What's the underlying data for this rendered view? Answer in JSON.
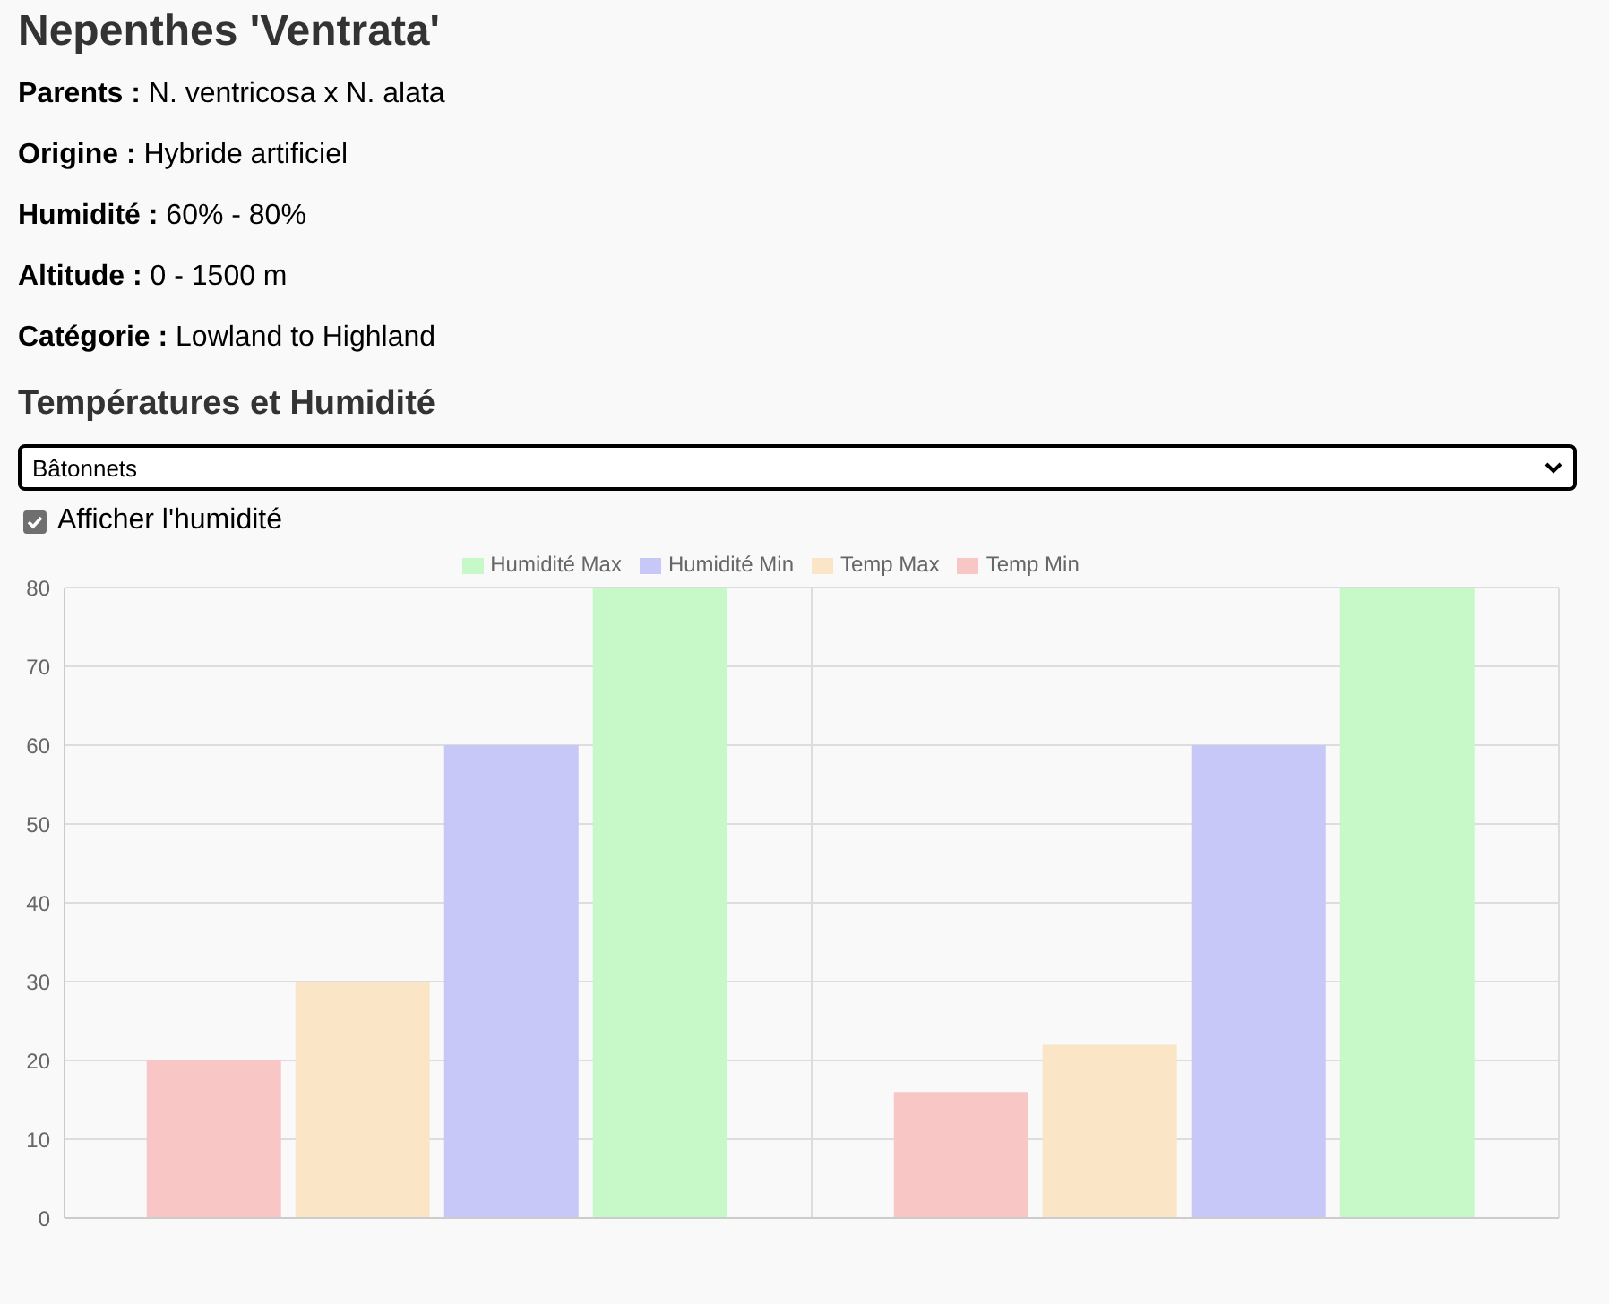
{
  "chart_data": {
    "type": "bar",
    "title": "Nepenthes 'Ventrata'",
    "subtitle": "Températures et Humidité",
    "annotations": [
      "Parents : N. ventricosa x N. alata",
      "Origine : Hybride artificiel",
      "Humidité : 60% - 80%",
      "Altitude : 0 - 1500 m",
      "Catégorie : Lowland to Highland",
      "Bâtonnets",
      "Afficher l'humidité"
    ],
    "categories": [
      null,
      null
    ],
    "series": [
      {
        "name": "Temp Min",
        "color": "#f9c6c6",
        "values": [
          20,
          16
        ]
      },
      {
        "name": "Temp Max",
        "color": "#fae6c6",
        "values": [
          30,
          22
        ]
      },
      {
        "name": "Humidité Min",
        "color": "#c7c7f8",
        "values": [
          60,
          60
        ]
      },
      {
        "name": "Humidité Max",
        "color": "#c7f8c7",
        "values": [
          80,
          80
        ]
      }
    ],
    "ylim": [
      0,
      80
    ],
    "yticks": [
      0,
      10,
      20,
      30,
      40,
      50,
      60,
      70,
      80
    ],
    "grid": true,
    "legend": "top"
  }
}
